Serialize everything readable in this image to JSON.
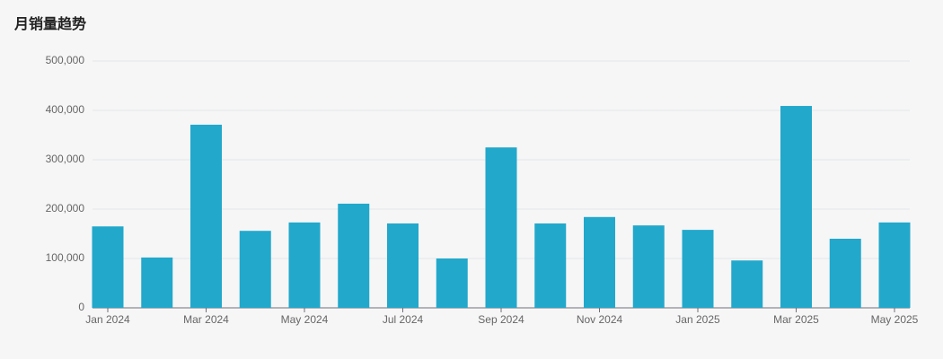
{
  "chart_data": {
    "type": "bar",
    "title": "月销量趋势",
    "categories": [
      "Jan 2024",
      null,
      "Mar 2024",
      null,
      "May 2024",
      null,
      "Jul 2024",
      null,
      "Sep 2024",
      null,
      "Nov 2024",
      null,
      "Jan 2025",
      null,
      "Mar 2025",
      null,
      "May 2025"
    ],
    "values": [
      165000,
      102000,
      371000,
      156000,
      173000,
      211000,
      171000,
      100000,
      325000,
      171000,
      184000,
      167000,
      158000,
      96000,
      409000,
      140000,
      173000
    ],
    "color": "#22a8cb",
    "ylim": [
      0,
      500000
    ],
    "yticks": [
      0,
      {
        "value": 100000,
        "label": "100,000"
      },
      {
        "value": 200000,
        "label": "200,000"
      },
      {
        "value": 300000,
        "label": "300,000"
      },
      {
        "value": 400000,
        "label": "400,000"
      },
      {
        "value": 500000,
        "label": "500,000"
      }
    ],
    "grid": true
  }
}
